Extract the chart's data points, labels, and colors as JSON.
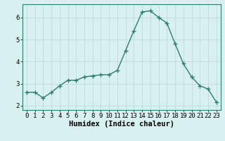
{
  "x": [
    0,
    1,
    2,
    3,
    4,
    5,
    6,
    7,
    8,
    9,
    10,
    11,
    12,
    13,
    14,
    15,
    16,
    17,
    18,
    19,
    20,
    21,
    22,
    23
  ],
  "y": [
    2.6,
    2.6,
    2.35,
    2.6,
    2.9,
    3.15,
    3.15,
    3.3,
    3.35,
    3.4,
    3.4,
    3.6,
    4.5,
    5.4,
    6.25,
    6.3,
    6.0,
    5.75,
    4.8,
    3.9,
    3.3,
    2.9,
    2.75,
    2.15
  ],
  "line_color": "#2e7d6e",
  "marker": "+",
  "marker_size": 4,
  "bg_color": "#d9f0f0",
  "grid_color": "#b8d8d8",
  "xlabel": "Humidex (Indice chaleur)",
  "xlim": [
    -0.5,
    23.5
  ],
  "ylim": [
    1.8,
    6.6
  ],
  "yticks": [
    2,
    3,
    4,
    5,
    6
  ],
  "xticks": [
    0,
    1,
    2,
    3,
    4,
    5,
    6,
    7,
    8,
    9,
    10,
    11,
    12,
    13,
    14,
    15,
    16,
    17,
    18,
    19,
    20,
    21,
    22,
    23
  ],
  "xlabel_fontsize": 7.5,
  "tick_fontsize": 6.5,
  "linewidth": 1.0,
  "marker_linewidth": 1.0
}
